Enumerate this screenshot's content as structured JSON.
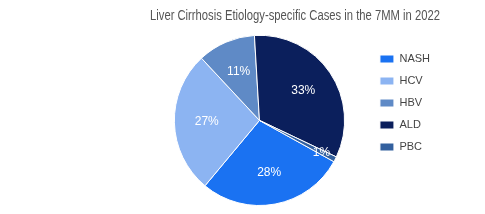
{
  "chart_data": {
    "type": "pie",
    "title": "Liver Cirrhosis Etiology-specific Cases in the 7MM in 2022",
    "categories": [
      "NASH",
      "HCV",
      "HBV",
      "ALD",
      "PBC"
    ],
    "values": [
      28,
      27,
      11,
      33,
      1
    ],
    "value_labels": [
      "28%",
      "27%",
      "11%",
      "33%",
      "1%"
    ],
    "colors": [
      "#1a72f2",
      "#8cb4f2",
      "#5f8ac6",
      "#0b1f5c",
      "#33609e"
    ],
    "legend": "right",
    "data_labels": true
  }
}
